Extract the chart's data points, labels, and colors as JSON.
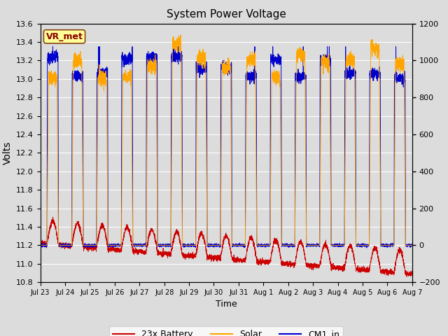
{
  "title": "System Power Voltage",
  "xlabel": "Time",
  "ylabel": "Volts",
  "ylim_left": [
    10.8,
    13.6
  ],
  "ylim_right": [
    -200,
    1200
  ],
  "annotation_text": "VR_met",
  "x_tick_labels": [
    "Jul 23",
    "Jul 24",
    "Jul 25",
    "Jul 26",
    "Jul 27",
    "Jul 28",
    "Jul 29",
    "Jul 30",
    "Jul 31",
    "Aug 1",
    "Aug 2",
    "Aug 3",
    "Aug 4",
    "Aug 5",
    "Aug 6",
    "Aug 7"
  ],
  "legend_labels": [
    "23x Battery",
    "Solar",
    "CM1_in"
  ],
  "legend_colors": [
    "#cc0000",
    "#ffa500",
    "#0000cc"
  ],
  "bg_color": "#dcdcdc",
  "plot_bg_color": "#dcdcdc",
  "grid_color": "white",
  "n_days": 15,
  "points_per_day": 288
}
